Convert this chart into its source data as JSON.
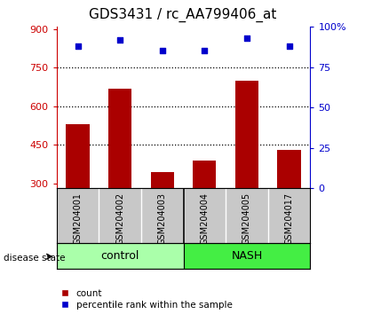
{
  "title": "GDS3431 / rc_AA799406_at",
  "samples": [
    "GSM204001",
    "GSM204002",
    "GSM204003",
    "GSM204004",
    "GSM204005",
    "GSM204017"
  ],
  "counts": [
    530,
    670,
    345,
    390,
    700,
    430
  ],
  "percentiles": [
    88,
    92,
    85,
    85,
    93,
    88
  ],
  "ylim_left": [
    280,
    910
  ],
  "ylim_right": [
    0,
    100
  ],
  "yticks_left": [
    300,
    450,
    600,
    750,
    900
  ],
  "yticks_right": [
    0,
    25,
    50,
    75,
    100
  ],
  "ytick_labels_right": [
    "0",
    "25",
    "50",
    "75",
    "100%"
  ],
  "bar_color": "#aa0000",
  "scatter_color": "#0000cc",
  "control_color": "#aaffaa",
  "nash_color": "#44ee44",
  "bg_color": "#c8c8c8",
  "title_fontsize": 11,
  "tick_fontsize": 8,
  "bar_width": 0.55,
  "n_control": 3,
  "n_nash": 3
}
